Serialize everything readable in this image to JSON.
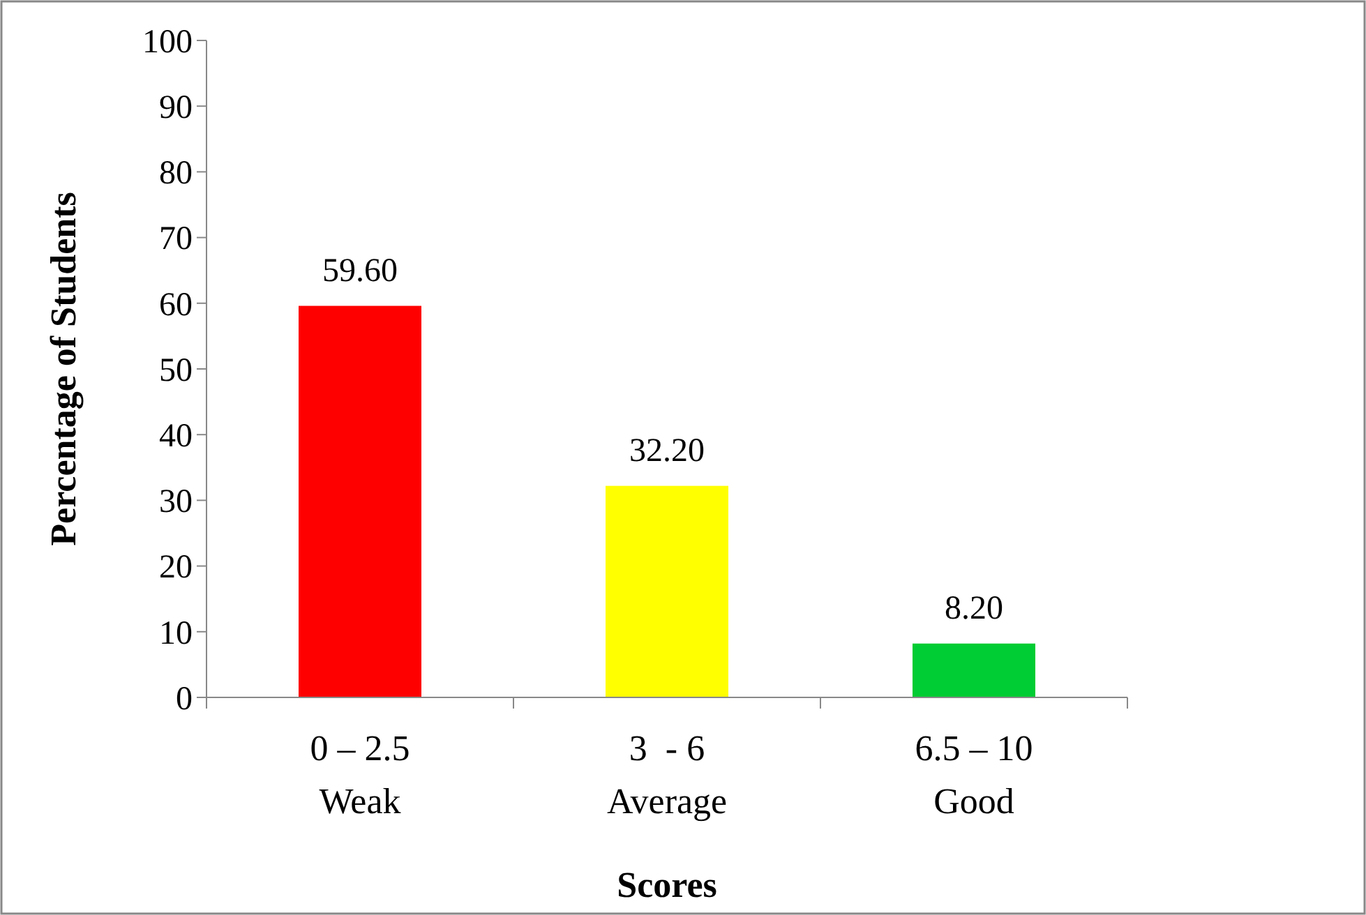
{
  "chart_data": {
    "type": "bar",
    "xlabel": "Scores",
    "ylabel": "Percentage of Students",
    "categories": [
      "0 – 2.5\nWeak",
      "3  - 6\nAverage",
      "6.5 – 10\nGood"
    ],
    "values": [
      59.6,
      32.2,
      8.2
    ],
    "colors": [
      "#ff0000",
      "#ffff00",
      "#00cc33"
    ],
    "value_labels": [
      "59.60",
      "32.20",
      "8.20"
    ],
    "ylim": [
      0,
      100
    ],
    "yticks": [
      0,
      10,
      20,
      30,
      40,
      50,
      60,
      70,
      80,
      90,
      100
    ],
    "grid": false
  }
}
